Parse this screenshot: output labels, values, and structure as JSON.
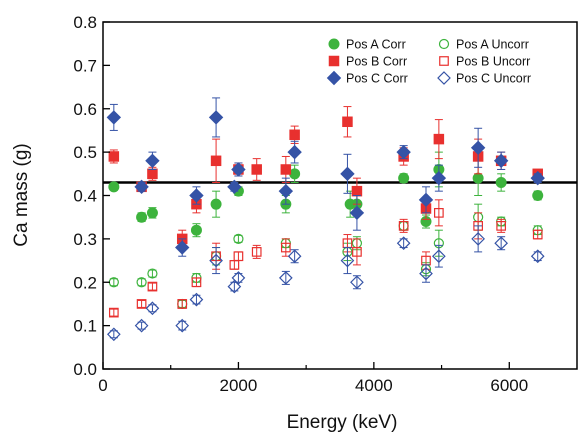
{
  "chart_data": {
    "type": "scatter",
    "xlabel": "Energy (keV)",
    "ylabel": "Ca mass (g)",
    "xlim": [
      0,
      7000
    ],
    "ylim": [
      0,
      0.8
    ],
    "x_ticks": [
      0,
      2000,
      4000,
      6000
    ],
    "x_tick_labels": [
      "0",
      "2000",
      "4000",
      "6000"
    ],
    "y_ticks": [
      0.0,
      0.1,
      0.2,
      0.3,
      0.4,
      0.5,
      0.6,
      0.7,
      0.8
    ],
    "y_tick_labels": [
      "0.0",
      "0.1",
      "0.2",
      "0.3",
      "0.4",
      "0.5",
      "0.6",
      "0.7",
      "0.8"
    ],
    "grid": false,
    "legend_position": "top-right",
    "reference_line": {
      "y": 0.43,
      "color": "#000000"
    },
    "series": [
      {
        "name": "Pos A Corr",
        "marker": "circle",
        "filled": true,
        "color": "#3db33d",
        "points": [
          [
            160,
            0.42,
            0.008
          ],
          [
            570,
            0.35,
            0.01
          ],
          [
            730,
            0.36,
            0.012
          ],
          [
            1380,
            0.32,
            0.015
          ],
          [
            1670,
            0.38,
            0.03
          ],
          [
            2000,
            0.41,
            0.01
          ],
          [
            2700,
            0.38,
            0.02
          ],
          [
            2830,
            0.45,
            0.02
          ],
          [
            3650,
            0.38,
            0.03
          ],
          [
            3750,
            0.38,
            0.02
          ],
          [
            4440,
            0.44,
            0.01
          ],
          [
            4770,
            0.34,
            0.015
          ],
          [
            4960,
            0.46,
            0.04
          ],
          [
            5540,
            0.44,
            0.04
          ],
          [
            5880,
            0.43,
            0.02
          ],
          [
            6420,
            0.4,
            0.01
          ]
        ]
      },
      {
        "name": "Pos B Corr",
        "marker": "square",
        "filled": true,
        "color": "#e8302e",
        "points": [
          [
            160,
            0.49,
            0.015
          ],
          [
            570,
            0.42,
            0.01
          ],
          [
            730,
            0.45,
            0.015
          ],
          [
            1170,
            0.3,
            0.02
          ],
          [
            1380,
            0.38,
            0.02
          ],
          [
            1670,
            0.48,
            0.05
          ],
          [
            2000,
            0.46,
            0.015
          ],
          [
            2270,
            0.46,
            0.025
          ],
          [
            2700,
            0.46,
            0.03
          ],
          [
            2830,
            0.54,
            0.02
          ],
          [
            3610,
            0.57,
            0.035
          ],
          [
            3750,
            0.41,
            0.03
          ],
          [
            4440,
            0.49,
            0.02
          ],
          [
            4770,
            0.37,
            0.025
          ],
          [
            4960,
            0.53,
            0.045
          ],
          [
            5540,
            0.49,
            0.04
          ],
          [
            5880,
            0.48,
            0.02
          ],
          [
            6420,
            0.45,
            0.01
          ]
        ]
      },
      {
        "name": "Pos C Corr",
        "marker": "diamond",
        "filled": true,
        "color": "#3553a6",
        "points": [
          [
            160,
            0.58,
            0.03
          ],
          [
            570,
            0.42,
            0.01
          ],
          [
            730,
            0.48,
            0.02
          ],
          [
            1170,
            0.28,
            0.02
          ],
          [
            1380,
            0.4,
            0.02
          ],
          [
            1670,
            0.58,
            0.045
          ],
          [
            1940,
            0.42,
            0.01
          ],
          [
            2000,
            0.46,
            0.015
          ],
          [
            2700,
            0.41,
            0.03
          ],
          [
            2830,
            0.5,
            0.025
          ],
          [
            3610,
            0.45,
            0.045
          ],
          [
            3750,
            0.36,
            0.04
          ],
          [
            4440,
            0.5,
            0.015
          ],
          [
            4770,
            0.39,
            0.03
          ],
          [
            4960,
            0.44,
            0.03
          ],
          [
            5540,
            0.51,
            0.045
          ],
          [
            5880,
            0.48,
            0.02
          ],
          [
            6420,
            0.44,
            0.01
          ]
        ]
      },
      {
        "name": "Pos A Uncorr",
        "marker": "circle",
        "filled": false,
        "color": "#3db33d",
        "points": [
          [
            160,
            0.2,
            0.008
          ],
          [
            570,
            0.2,
            0.008
          ],
          [
            730,
            0.22,
            0.008
          ],
          [
            1170,
            0.15,
            0.008
          ],
          [
            1380,
            0.21,
            0.01
          ],
          [
            1670,
            0.26,
            0.02
          ],
          [
            2000,
            0.3,
            0.008
          ],
          [
            2700,
            0.29,
            0.01
          ],
          [
            3610,
            0.27,
            0.02
          ],
          [
            3750,
            0.29,
            0.015
          ],
          [
            4440,
            0.33,
            0.01
          ],
          [
            4770,
            0.23,
            0.015
          ],
          [
            4960,
            0.29,
            0.03
          ],
          [
            5540,
            0.35,
            0.03
          ],
          [
            5880,
            0.34,
            0.01
          ],
          [
            6420,
            0.32,
            0.01
          ]
        ]
      },
      {
        "name": "Pos B Uncorr",
        "marker": "square",
        "filled": false,
        "color": "#e8302e",
        "points": [
          [
            160,
            0.13,
            0.008
          ],
          [
            570,
            0.15,
            0.008
          ],
          [
            730,
            0.19,
            0.008
          ],
          [
            1170,
            0.15,
            0.01
          ],
          [
            1380,
            0.2,
            0.01
          ],
          [
            1670,
            0.26,
            0.03
          ],
          [
            1940,
            0.24,
            0.01
          ],
          [
            2000,
            0.26,
            0.01
          ],
          [
            2270,
            0.27,
            0.015
          ],
          [
            2700,
            0.28,
            0.02
          ],
          [
            3610,
            0.29,
            0.02
          ],
          [
            3750,
            0.27,
            0.03
          ],
          [
            4440,
            0.33,
            0.015
          ],
          [
            4770,
            0.25,
            0.02
          ],
          [
            4960,
            0.36,
            0.03
          ],
          [
            5540,
            0.33,
            0.03
          ],
          [
            5880,
            0.33,
            0.015
          ],
          [
            6420,
            0.31,
            0.01
          ]
        ]
      },
      {
        "name": "Pos C Uncorr",
        "marker": "diamond",
        "filled": false,
        "color": "#3553a6",
        "points": [
          [
            160,
            0.08,
            0.008
          ],
          [
            570,
            0.1,
            0.008
          ],
          [
            730,
            0.14,
            0.008
          ],
          [
            1170,
            0.1,
            0.01
          ],
          [
            1380,
            0.16,
            0.01
          ],
          [
            1670,
            0.25,
            0.03
          ],
          [
            1940,
            0.19,
            0.01
          ],
          [
            2000,
            0.21,
            0.01
          ],
          [
            2700,
            0.21,
            0.015
          ],
          [
            2830,
            0.26,
            0.015
          ],
          [
            3610,
            0.25,
            0.03
          ],
          [
            3750,
            0.2,
            0.015
          ],
          [
            4440,
            0.29,
            0.01
          ],
          [
            4770,
            0.22,
            0.02
          ],
          [
            4960,
            0.26,
            0.025
          ],
          [
            5540,
            0.3,
            0.03
          ],
          [
            5880,
            0.29,
            0.015
          ],
          [
            6420,
            0.26,
            0.01
          ]
        ]
      }
    ]
  }
}
